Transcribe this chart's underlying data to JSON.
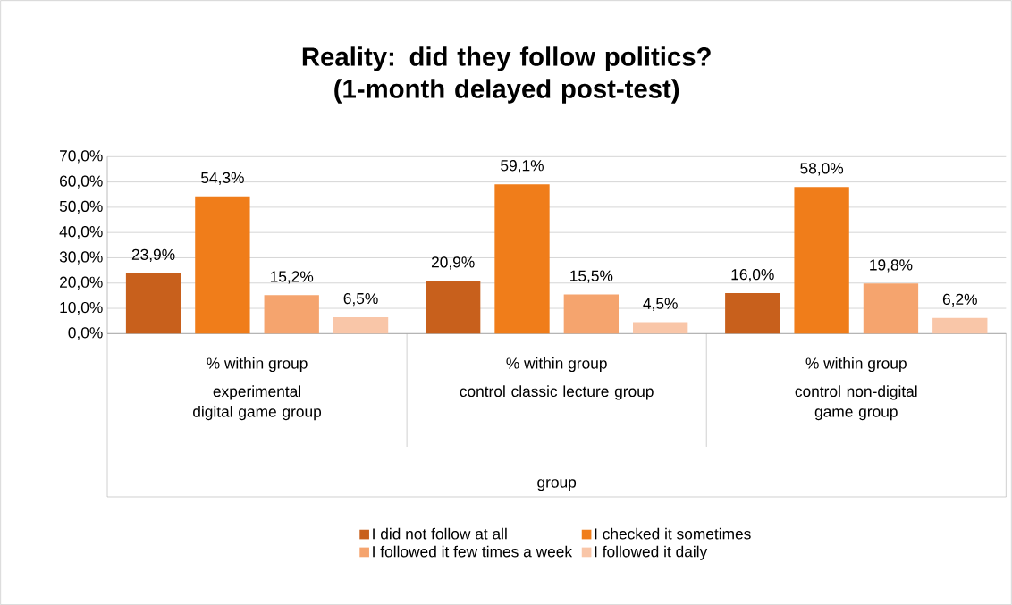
{
  "chart_data": {
    "type": "bar",
    "title": "Reality: did they follow politics? (1-month delayed post-test)",
    "categories": [
      "experimental digital game group",
      "control classic lecture group",
      "control non-digital game group"
    ],
    "annotations": [
      "% within group",
      "% within group",
      "% within group",
      "group"
    ],
    "series": [
      {
        "name": "I did not follow at all",
        "color": "#c8601c",
        "values": [
          23.9,
          20.9,
          16.0
        ],
        "value_labels": [
          "23,9%",
          "20,9%",
          "16,0%"
        ]
      },
      {
        "name": "I checked it sometimes",
        "color": "#f07d1a",
        "values": [
          54.3,
          59.1,
          58.0
        ],
        "value_labels": [
          "54,3%",
          "59,1%",
          "58,0%"
        ]
      },
      {
        "name": "I followed it few times a week",
        "color": "#f5a46e",
        "values": [
          15.2,
          15.5,
          19.8
        ],
        "value_labels": [
          "15,2%",
          "15,5%",
          "19,8%"
        ]
      },
      {
        "name": "I followed it daily",
        "color": "#f9c6a8",
        "values": [
          6.5,
          4.5,
          6.2
        ],
        "value_labels": [
          "6,5%",
          "4,5%",
          "6,2%"
        ]
      }
    ],
    "ylim": [
      0,
      70
    ],
    "yticks": [
      {
        "value": 0,
        "label": "0,0%"
      },
      {
        "value": 10,
        "label": "10,0%"
      },
      {
        "value": 20,
        "label": "20,0%"
      },
      {
        "value": 30,
        "label": "30,0%"
      },
      {
        "value": 40,
        "label": "40,0%"
      },
      {
        "value": 50,
        "label": "50,0%"
      },
      {
        "value": 60,
        "label": "60,0%"
      },
      {
        "value": 70,
        "label": "70,0%"
      }
    ],
    "grid": "y",
    "legend": "bottom"
  }
}
